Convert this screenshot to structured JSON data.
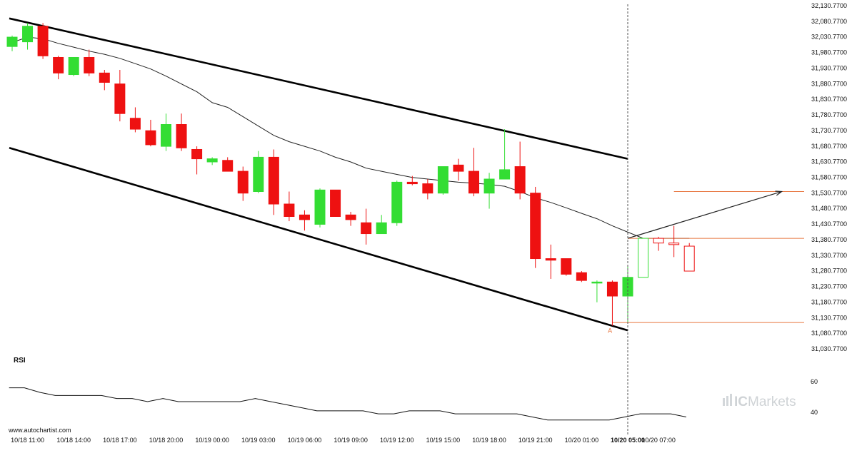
{
  "chart_data": {
    "type": "candlestick",
    "y_ticks": [
      "32,130.7700",
      "32,080.7700",
      "32,030.7700",
      "31,980.7700",
      "31,930.7700",
      "31,880.7700",
      "31,830.7700",
      "31,780.7700",
      "31,730.7700",
      "31,680.7700",
      "31,630.7700",
      "31,580.7700",
      "31,530.7700",
      "31,480.7700",
      "31,430.7700",
      "31,380.7700",
      "31,330.7700",
      "31,280.7700",
      "31,230.7700",
      "31,180.7700",
      "31,130.7700",
      "31,080.7700",
      "31,030.7700"
    ],
    "ylim": [
      31030.77,
      32130.77
    ],
    "x_ticks": [
      {
        "label": "10/18 11:00",
        "bar": 1
      },
      {
        "label": "10/18 14:00",
        "bar": 4
      },
      {
        "label": "10/18 17:00",
        "bar": 7
      },
      {
        "label": "10/18 20:00",
        "bar": 10
      },
      {
        "label": "10/19 00:00",
        "bar": 13
      },
      {
        "label": "10/19 03:00",
        "bar": 16
      },
      {
        "label": "10/19 06:00",
        "bar": 19
      },
      {
        "label": "10/19 09:00",
        "bar": 22
      },
      {
        "label": "10/19 12:00",
        "bar": 25
      },
      {
        "label": "10/19 15:00",
        "bar": 28
      },
      {
        "label": "10/19 18:00",
        "bar": 31
      },
      {
        "label": "10/19 21:00",
        "bar": 34
      },
      {
        "label": "10/20 01:00",
        "bar": 37
      },
      {
        "label": "10/20 05:00",
        "bar": 40,
        "bold": true
      },
      {
        "label": "10/20 07:00",
        "bar": 42
      }
    ],
    "candles": [
      {
        "o": 32000,
        "h": 32035,
        "l": 31985,
        "c": 32030
      },
      {
        "o": 32015,
        "h": 32075,
        "l": 31990,
        "c": 32065
      },
      {
        "o": 32065,
        "h": 32075,
        "l": 31960,
        "c": 31970
      },
      {
        "o": 31965,
        "h": 31970,
        "l": 31895,
        "c": 31915
      },
      {
        "o": 31910,
        "h": 31965,
        "l": 31905,
        "c": 31965
      },
      {
        "o": 31965,
        "h": 31990,
        "l": 31905,
        "c": 31915
      },
      {
        "o": 31915,
        "h": 31925,
        "l": 31860,
        "c": 31885
      },
      {
        "o": 31880,
        "h": 31925,
        "l": 31760,
        "c": 31785
      },
      {
        "o": 31770,
        "h": 31805,
        "l": 31725,
        "c": 31735
      },
      {
        "o": 31730,
        "h": 31765,
        "l": 31680,
        "c": 31685
      },
      {
        "o": 31680,
        "h": 31785,
        "l": 31665,
        "c": 31750
      },
      {
        "o": 31750,
        "h": 31785,
        "l": 31665,
        "c": 31675
      },
      {
        "o": 31670,
        "h": 31680,
        "l": 31590,
        "c": 31640
      },
      {
        "o": 31630,
        "h": 31645,
        "l": 31620,
        "c": 31640
      },
      {
        "o": 31635,
        "h": 31645,
        "l": 31600,
        "c": 31600
      },
      {
        "o": 31600,
        "h": 31615,
        "l": 31505,
        "c": 31530
      },
      {
        "o": 31535,
        "h": 31665,
        "l": 31530,
        "c": 31645
      },
      {
        "o": 31645,
        "h": 31670,
        "l": 31460,
        "c": 31495
      },
      {
        "o": 31495,
        "h": 31535,
        "l": 31440,
        "c": 31455
      },
      {
        "o": 31460,
        "h": 31475,
        "l": 31410,
        "c": 31445
      },
      {
        "o": 31430,
        "h": 31545,
        "l": 31420,
        "c": 31540
      },
      {
        "o": 31540,
        "h": 31540,
        "l": 31455,
        "c": 31455
      },
      {
        "o": 31460,
        "h": 31470,
        "l": 31425,
        "c": 31445
      },
      {
        "o": 31435,
        "h": 31480,
        "l": 31365,
        "c": 31400
      },
      {
        "o": 31400,
        "h": 31460,
        "l": 31400,
        "c": 31435
      },
      {
        "o": 31435,
        "h": 31570,
        "l": 31425,
        "c": 31565
      },
      {
        "o": 31565,
        "h": 31585,
        "l": 31555,
        "c": 31560
      },
      {
        "o": 31560,
        "h": 31575,
        "l": 31510,
        "c": 31530
      },
      {
        "o": 31530,
        "h": 31615,
        "l": 31525,
        "c": 31615
      },
      {
        "o": 31620,
        "h": 31640,
        "l": 31570,
        "c": 31600
      },
      {
        "o": 31600,
        "h": 31675,
        "l": 31520,
        "c": 31530
      },
      {
        "o": 31530,
        "h": 31595,
        "l": 31480,
        "c": 31575
      },
      {
        "o": 31575,
        "h": 31735,
        "l": 31575,
        "c": 31605
      },
      {
        "o": 31615,
        "h": 31695,
        "l": 31510,
        "c": 31530
      },
      {
        "o": 31530,
        "h": 31550,
        "l": 31290,
        "c": 31320
      },
      {
        "o": 31320,
        "h": 31365,
        "l": 31255,
        "c": 31315
      },
      {
        "o": 31320,
        "h": 31320,
        "l": 31265,
        "c": 31270
      },
      {
        "o": 31275,
        "h": 31280,
        "l": 31245,
        "c": 31250
      },
      {
        "o": 31245,
        "h": 31250,
        "l": 31180,
        "c": 31245
      },
      {
        "o": 31245,
        "h": 31250,
        "l": 31105,
        "c": 31200
      },
      {
        "o": 31200,
        "h": 31300,
        "l": 31115,
        "c": 31260
      },
      {
        "o": 31260,
        "h": 31385,
        "l": 31260,
        "c": 31385
      },
      {
        "o": 31385,
        "h": 31390,
        "l": 31345,
        "c": 31370
      },
      {
        "o": 31370,
        "h": 31425,
        "l": 31325,
        "c": 31365
      },
      {
        "o": 31360,
        "h": 31370,
        "l": 31280,
        "c": 31280
      }
    ],
    "moving_average": [
      32013,
      32030,
      32025,
      32010,
      31998,
      31985,
      31975,
      31962,
      31945,
      31928,
      31905,
      31880,
      31855,
      31820,
      31805,
      31775,
      31745,
      31715,
      31695,
      31680,
      31665,
      31645,
      31630,
      31610,
      31600,
      31590,
      31580,
      31575,
      31570,
      31565,
      31562,
      31558,
      31552,
      31535,
      31515,
      31500,
      31483,
      31465,
      31448,
      31425,
      31405,
      31385,
      31385,
      31385,
      31385
    ],
    "channel": {
      "upper": [
        {
          "bar": 0,
          "value": 32090
        },
        {
          "bar": 40,
          "value": 31640
        }
      ],
      "lower": [
        {
          "bar": 0,
          "value": 31675
        },
        {
          "bar": 40,
          "value": 31090
        }
      ]
    },
    "levels": [
      {
        "value": 31535,
        "from_bar": 43,
        "to_bar": 51,
        "color": "#e8763f"
      },
      {
        "value": 31385,
        "from_bar": 40,
        "to_bar": 51,
        "color": "#e8763f"
      },
      {
        "value": 31115,
        "from_bar": 39,
        "to_bar": 51,
        "color": "#e8763f"
      }
    ],
    "projection": {
      "from_bar": 40,
      "from_value": 31385,
      "to_bar": 50,
      "to_value": 31535
    },
    "marker": {
      "label": "A",
      "bar": 38.8,
      "value": 31105
    },
    "current_bar": 40,
    "rsi": {
      "title": "RSI",
      "ticks": [
        "60",
        "40"
      ],
      "ylim": [
        30,
        70
      ],
      "values": [
        56,
        56,
        53,
        51,
        51,
        51,
        51,
        49,
        49,
        47,
        49,
        47,
        47,
        47,
        47,
        47,
        49,
        47,
        45,
        43,
        41,
        41,
        41,
        41,
        39,
        39,
        41,
        41,
        41,
        39,
        39,
        39,
        39,
        39,
        37,
        35,
        35,
        35,
        35,
        35,
        37,
        39,
        39,
        39,
        37
      ]
    },
    "watermark": "www.autochartist.com",
    "brand": {
      "part1": "IC",
      "part2": "Markets"
    }
  }
}
